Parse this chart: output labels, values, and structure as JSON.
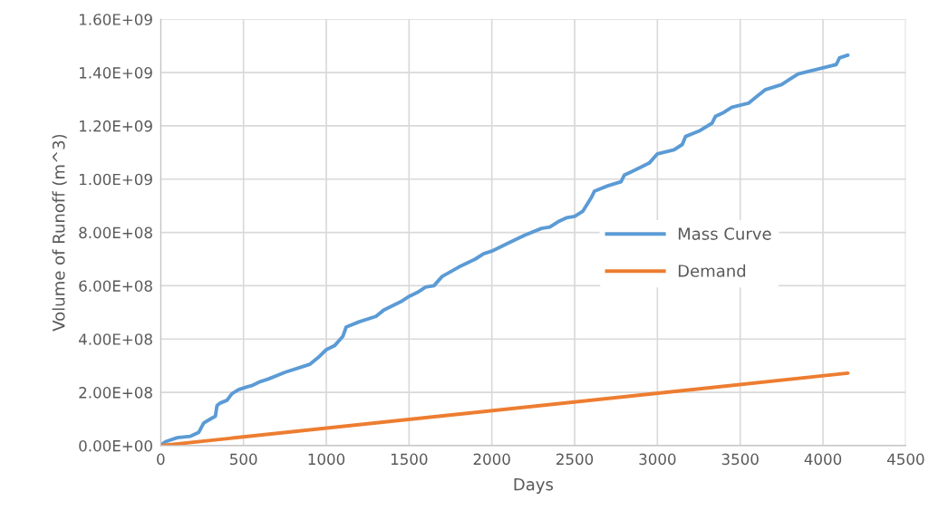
{
  "chart_data": {
    "type": "line",
    "xlabel": "Days",
    "ylabel": "Volume of Runoff (m^3)",
    "xlim": [
      0,
      4500
    ],
    "xticks": [
      0,
      500,
      1000,
      1500,
      2000,
      2500,
      3000,
      3500,
      4000,
      4500
    ],
    "ylim": [
      0,
      1600000000
    ],
    "yticks": [
      {
        "value": 0,
        "label": "0.00E+00"
      },
      {
        "value": 200000000,
        "label": "2.00E+08"
      },
      {
        "value": 400000000,
        "label": "4.00E+08"
      },
      {
        "value": 600000000,
        "label": "6.00E+08"
      },
      {
        "value": 800000000,
        "label": "8.00E+08"
      },
      {
        "value": 1000000000,
        "label": "1.00E+09"
      },
      {
        "value": 1200000000,
        "label": "1.20E+09"
      },
      {
        "value": 1400000000,
        "label": "1.40E+09"
      },
      {
        "value": 1600000000,
        "label": "1.60E+09"
      }
    ],
    "grid": true,
    "legend": "right",
    "marker": "none",
    "line_style": "solid",
    "series": [
      {
        "name": "Mass Curve",
        "color": "#5b9bd5",
        "x": [
          0,
          30,
          100,
          180,
          230,
          260,
          300,
          330,
          340,
          360,
          400,
          430,
          470,
          520,
          550,
          600,
          650,
          750,
          850,
          900,
          950,
          1000,
          1050,
          1100,
          1120,
          1200,
          1300,
          1350,
          1450,
          1500,
          1550,
          1600,
          1650,
          1700,
          1800,
          1900,
          1950,
          2000,
          2100,
          2200,
          2300,
          2350,
          2400,
          2450,
          2500,
          2550,
          2600,
          2620,
          2700,
          2780,
          2800,
          2850,
          2950,
          3000,
          3100,
          3150,
          3170,
          3250,
          3330,
          3350,
          3400,
          3450,
          3550,
          3600,
          3650,
          3750,
          3800,
          3850,
          3950,
          4050,
          4080,
          4100,
          4150
        ],
        "values": [
          2000000,
          15000000,
          30000000,
          35000000,
          50000000,
          85000000,
          100000000,
          110000000,
          150000000,
          160000000,
          170000000,
          195000000,
          210000000,
          220000000,
          225000000,
          240000000,
          250000000,
          275000000,
          295000000,
          305000000,
          330000000,
          360000000,
          375000000,
          410000000,
          445000000,
          465000000,
          485000000,
          510000000,
          540000000,
          560000000,
          575000000,
          595000000,
          600000000,
          635000000,
          670000000,
          700000000,
          720000000,
          730000000,
          760000000,
          790000000,
          815000000,
          820000000,
          840000000,
          855000000,
          860000000,
          880000000,
          930000000,
          955000000,
          975000000,
          990000000,
          1015000000,
          1030000000,
          1060000000,
          1095000000,
          1110000000,
          1130000000,
          1160000000,
          1180000000,
          1210000000,
          1235000000,
          1250000000,
          1270000000,
          1285000000,
          1310000000,
          1335000000,
          1355000000,
          1375000000,
          1395000000,
          1410000000,
          1425000000,
          1430000000,
          1455000000,
          1465000000
        ]
      },
      {
        "name": "Demand",
        "color": "#ed7d31",
        "x": [
          0,
          4150
        ],
        "values": [
          0,
          272000000
        ]
      }
    ]
  }
}
